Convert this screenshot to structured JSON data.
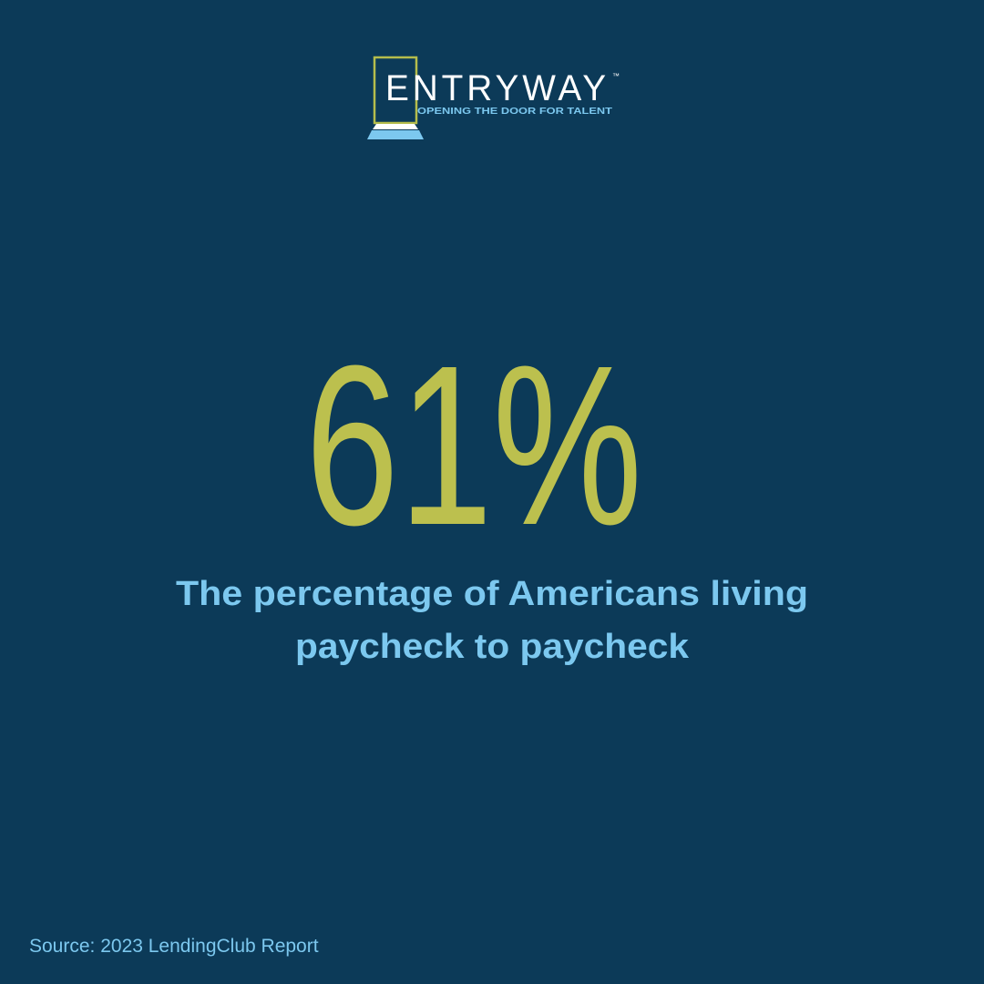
{
  "logo": {
    "name": "ENTRYWAY",
    "trademark": "™",
    "tagline": "OPENING THE DOOR FOR TALENT"
  },
  "stat": {
    "value": "61%",
    "description": [
      "The percentage of Americans living",
      "paycheck to paycheck"
    ]
  },
  "source": "Source: 2023 LendingClub Report"
}
